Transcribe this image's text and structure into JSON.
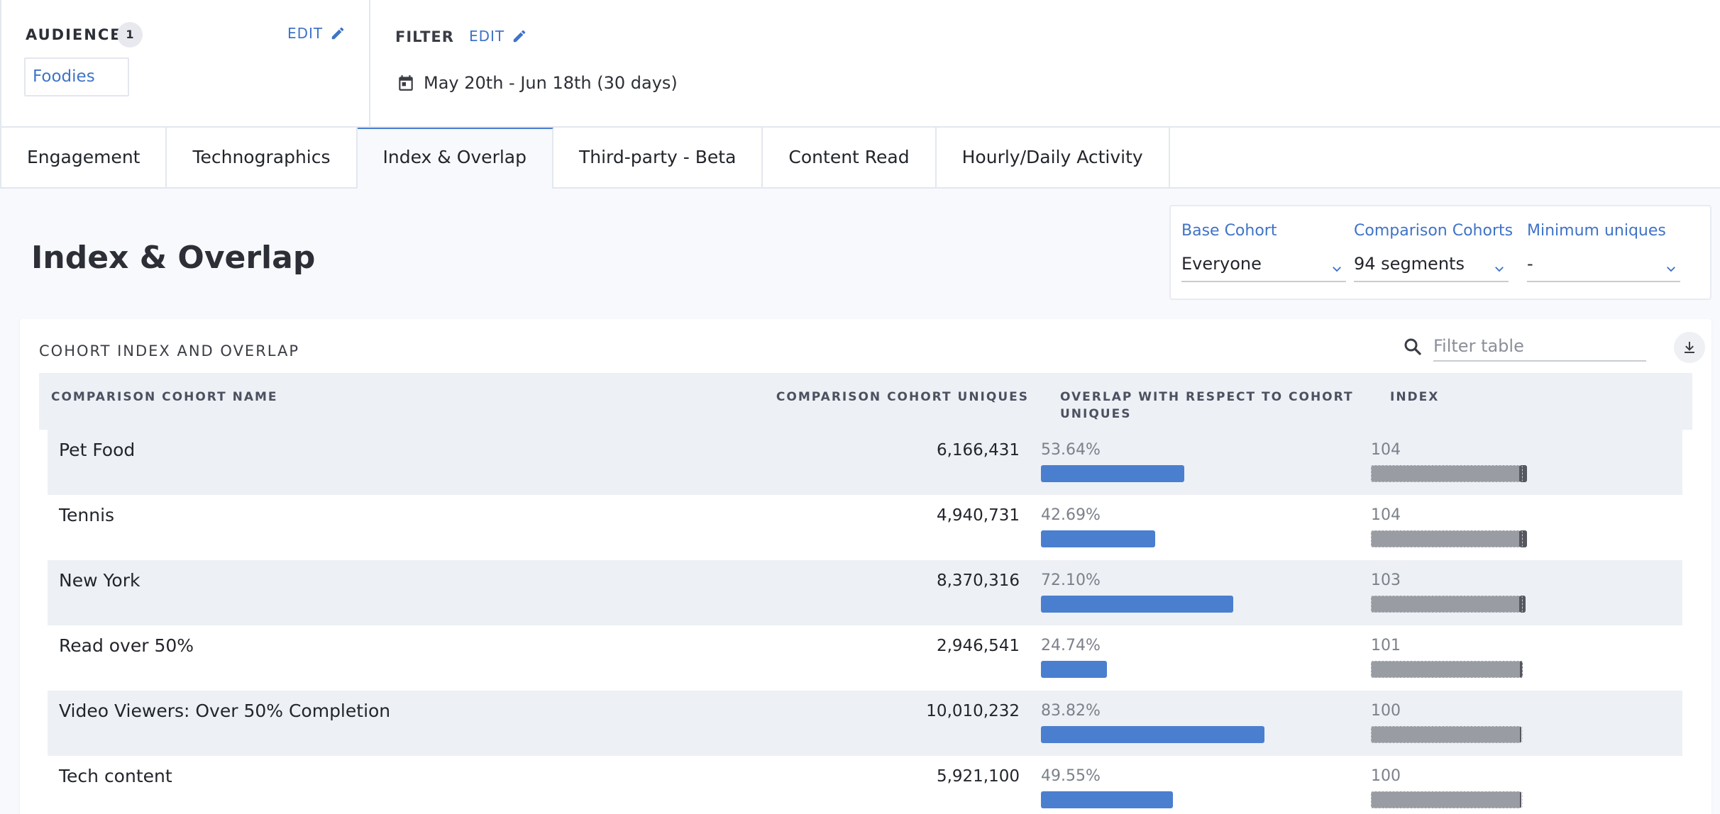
{
  "audience": {
    "label": "AUDIENCE",
    "count": "1",
    "edit_label": "EDIT",
    "chip": "Foodies"
  },
  "filter": {
    "label": "FILTER",
    "edit_label": "EDIT",
    "date_range": "May 20th - Jun 18th (30 days)"
  },
  "tabs": [
    {
      "label": "Engagement"
    },
    {
      "label": "Technographics"
    },
    {
      "label": "Index & Overlap"
    },
    {
      "label": "Third-party - Beta"
    },
    {
      "label": "Content Read"
    },
    {
      "label": "Hourly/Daily Activity"
    }
  ],
  "active_tab": "Index & Overlap",
  "page_title": "Index & Overlap",
  "controls": {
    "base_cohort": {
      "label": "Base Cohort",
      "value": "Everyone"
    },
    "comparison_cohorts": {
      "label": "Comparison Cohorts",
      "value": "94 segments"
    },
    "minimum_uniques": {
      "label": "Minimum uniques",
      "value": "-"
    }
  },
  "card": {
    "title": "COHORT INDEX AND OVERLAP",
    "filter_placeholder": "Filter table",
    "columns": {
      "name": "COMPARISON COHORT NAME",
      "uniques": "COMPARISON COHORT UNIQUES",
      "overlap": "OVERLAP WITH RESPECT TO COHORT UNIQUES",
      "index": "INDEX"
    },
    "rows": [
      {
        "name": "Pet Food",
        "uniques": "6,166,431",
        "overlap": "53.64%",
        "overlap_pct": 53.64,
        "index": "104",
        "index_value": 104
      },
      {
        "name": "Tennis",
        "uniques": "4,940,731",
        "overlap": "42.69%",
        "overlap_pct": 42.69,
        "index": "104",
        "index_value": 104
      },
      {
        "name": "New York",
        "uniques": "8,370,316",
        "overlap": "72.10%",
        "overlap_pct": 72.1,
        "index": "103",
        "index_value": 103
      },
      {
        "name": "Read over 50%",
        "uniques": "2,946,541",
        "overlap": "24.74%",
        "overlap_pct": 24.74,
        "index": "101",
        "index_value": 101
      },
      {
        "name": "Video Viewers: Over 50% Completion",
        "uniques": "10,010,232",
        "overlap": "83.82%",
        "overlap_pct": 83.82,
        "index": "100",
        "index_value": 100
      },
      {
        "name": "Tech content",
        "uniques": "5,921,100",
        "overlap": "49.55%",
        "overlap_pct": 49.55,
        "index": "100",
        "index_value": 100
      }
    ]
  },
  "colors": {
    "accent": "#3f73c7",
    "overlap_bar": "#4a7fd0",
    "index_bar": "#9a9ca3",
    "index_cap": "#55585f"
  }
}
